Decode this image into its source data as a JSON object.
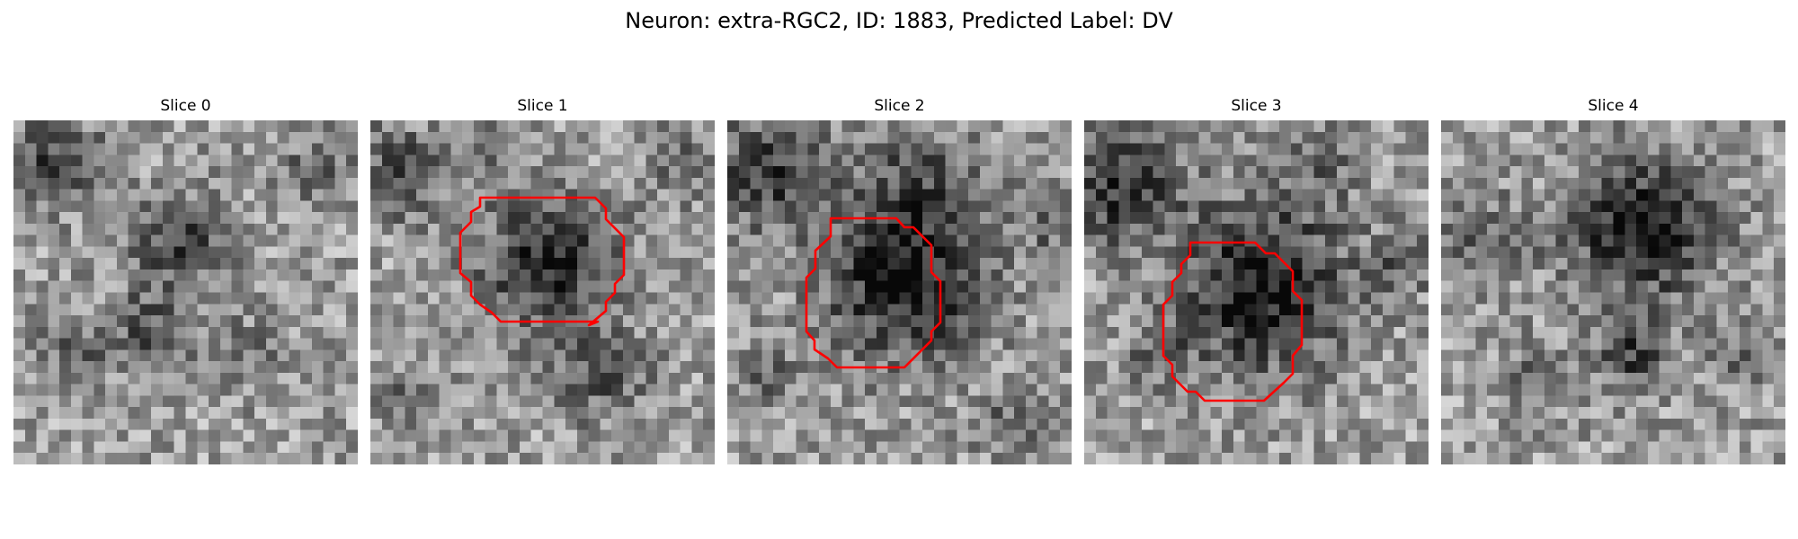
{
  "figure": {
    "title": "Neuron: extra-RGC2, ID: 1883, Predicted Label: DV"
  },
  "slices": [
    {
      "title": "Slice 0",
      "has_contour": false
    },
    {
      "title": "Slice 1",
      "has_contour": true
    },
    {
      "title": "Slice 2",
      "has_contour": true
    },
    {
      "title": "Slice 3",
      "has_contour": true
    },
    {
      "title": "Slice 4",
      "has_contour": false
    }
  ],
  "colors": {
    "contour": "#ff0000"
  }
}
